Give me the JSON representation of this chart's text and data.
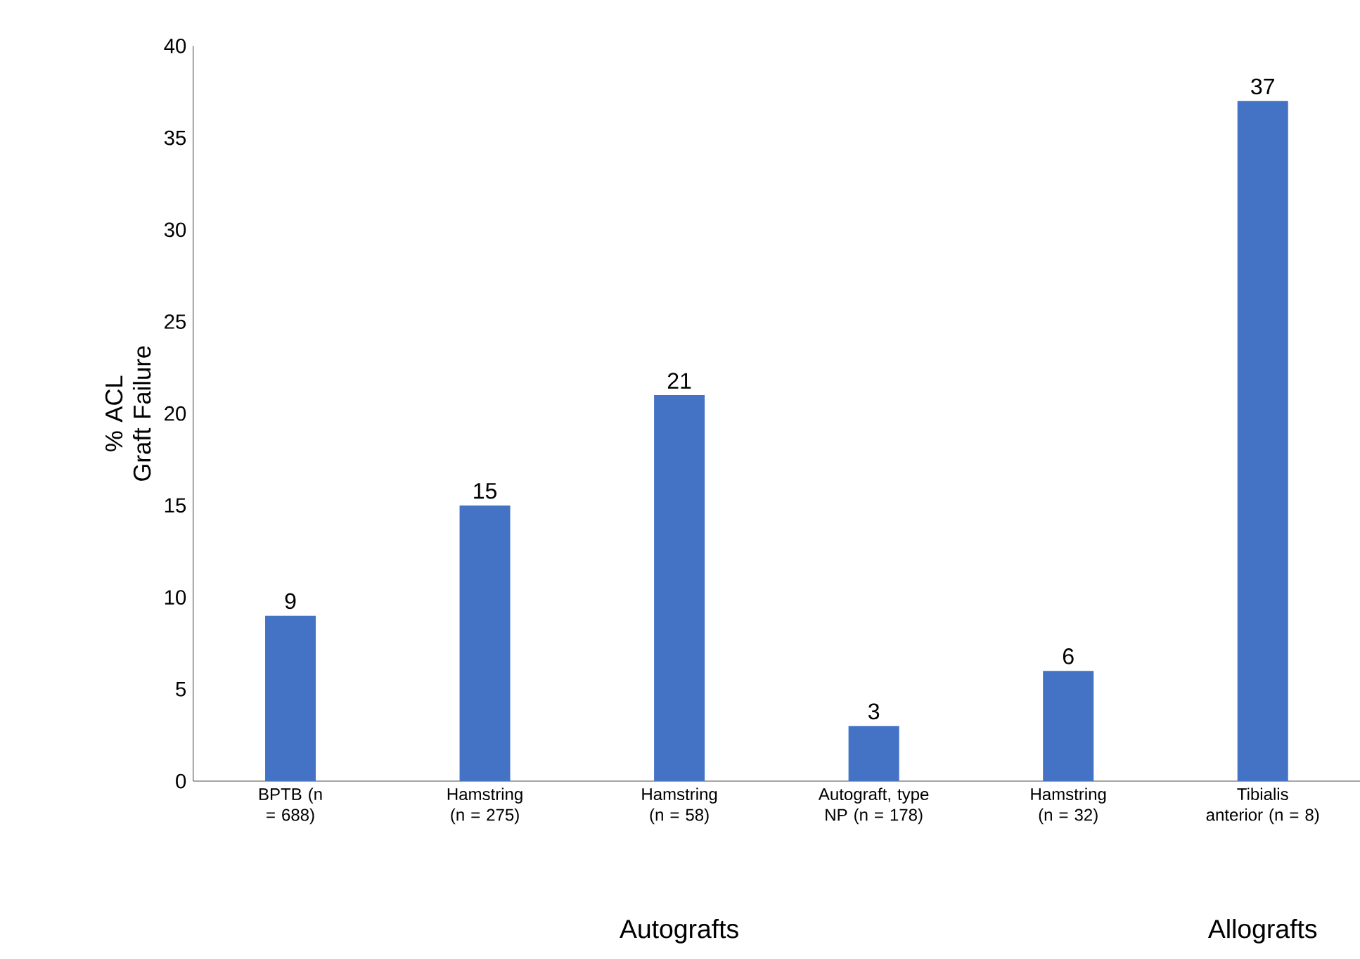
{
  "chart_data": {
    "type": "bar",
    "ylabel": "% ACL Graft Failure",
    "categories": [
      "BPTB (n = 688)",
      "Hamstring (n = 275)",
      "Hamstring (n = 58)",
      "Autograft, type NP (n = 178)",
      "Hamstring (n = 32)",
      "Tibialis anterior (n = 8)"
    ],
    "values": [
      9,
      15,
      21,
      3,
      6,
      37
    ],
    "value_labels": [
      "9",
      "15",
      "21",
      "3",
      "6",
      "37"
    ],
    "color": "#4472c4",
    "ylim": [
      0,
      40
    ],
    "yticks": [
      0,
      5,
      10,
      15,
      20,
      25,
      30,
      35,
      40
    ],
    "annotations": [
      "Autografts",
      "Allografts"
    ]
  }
}
